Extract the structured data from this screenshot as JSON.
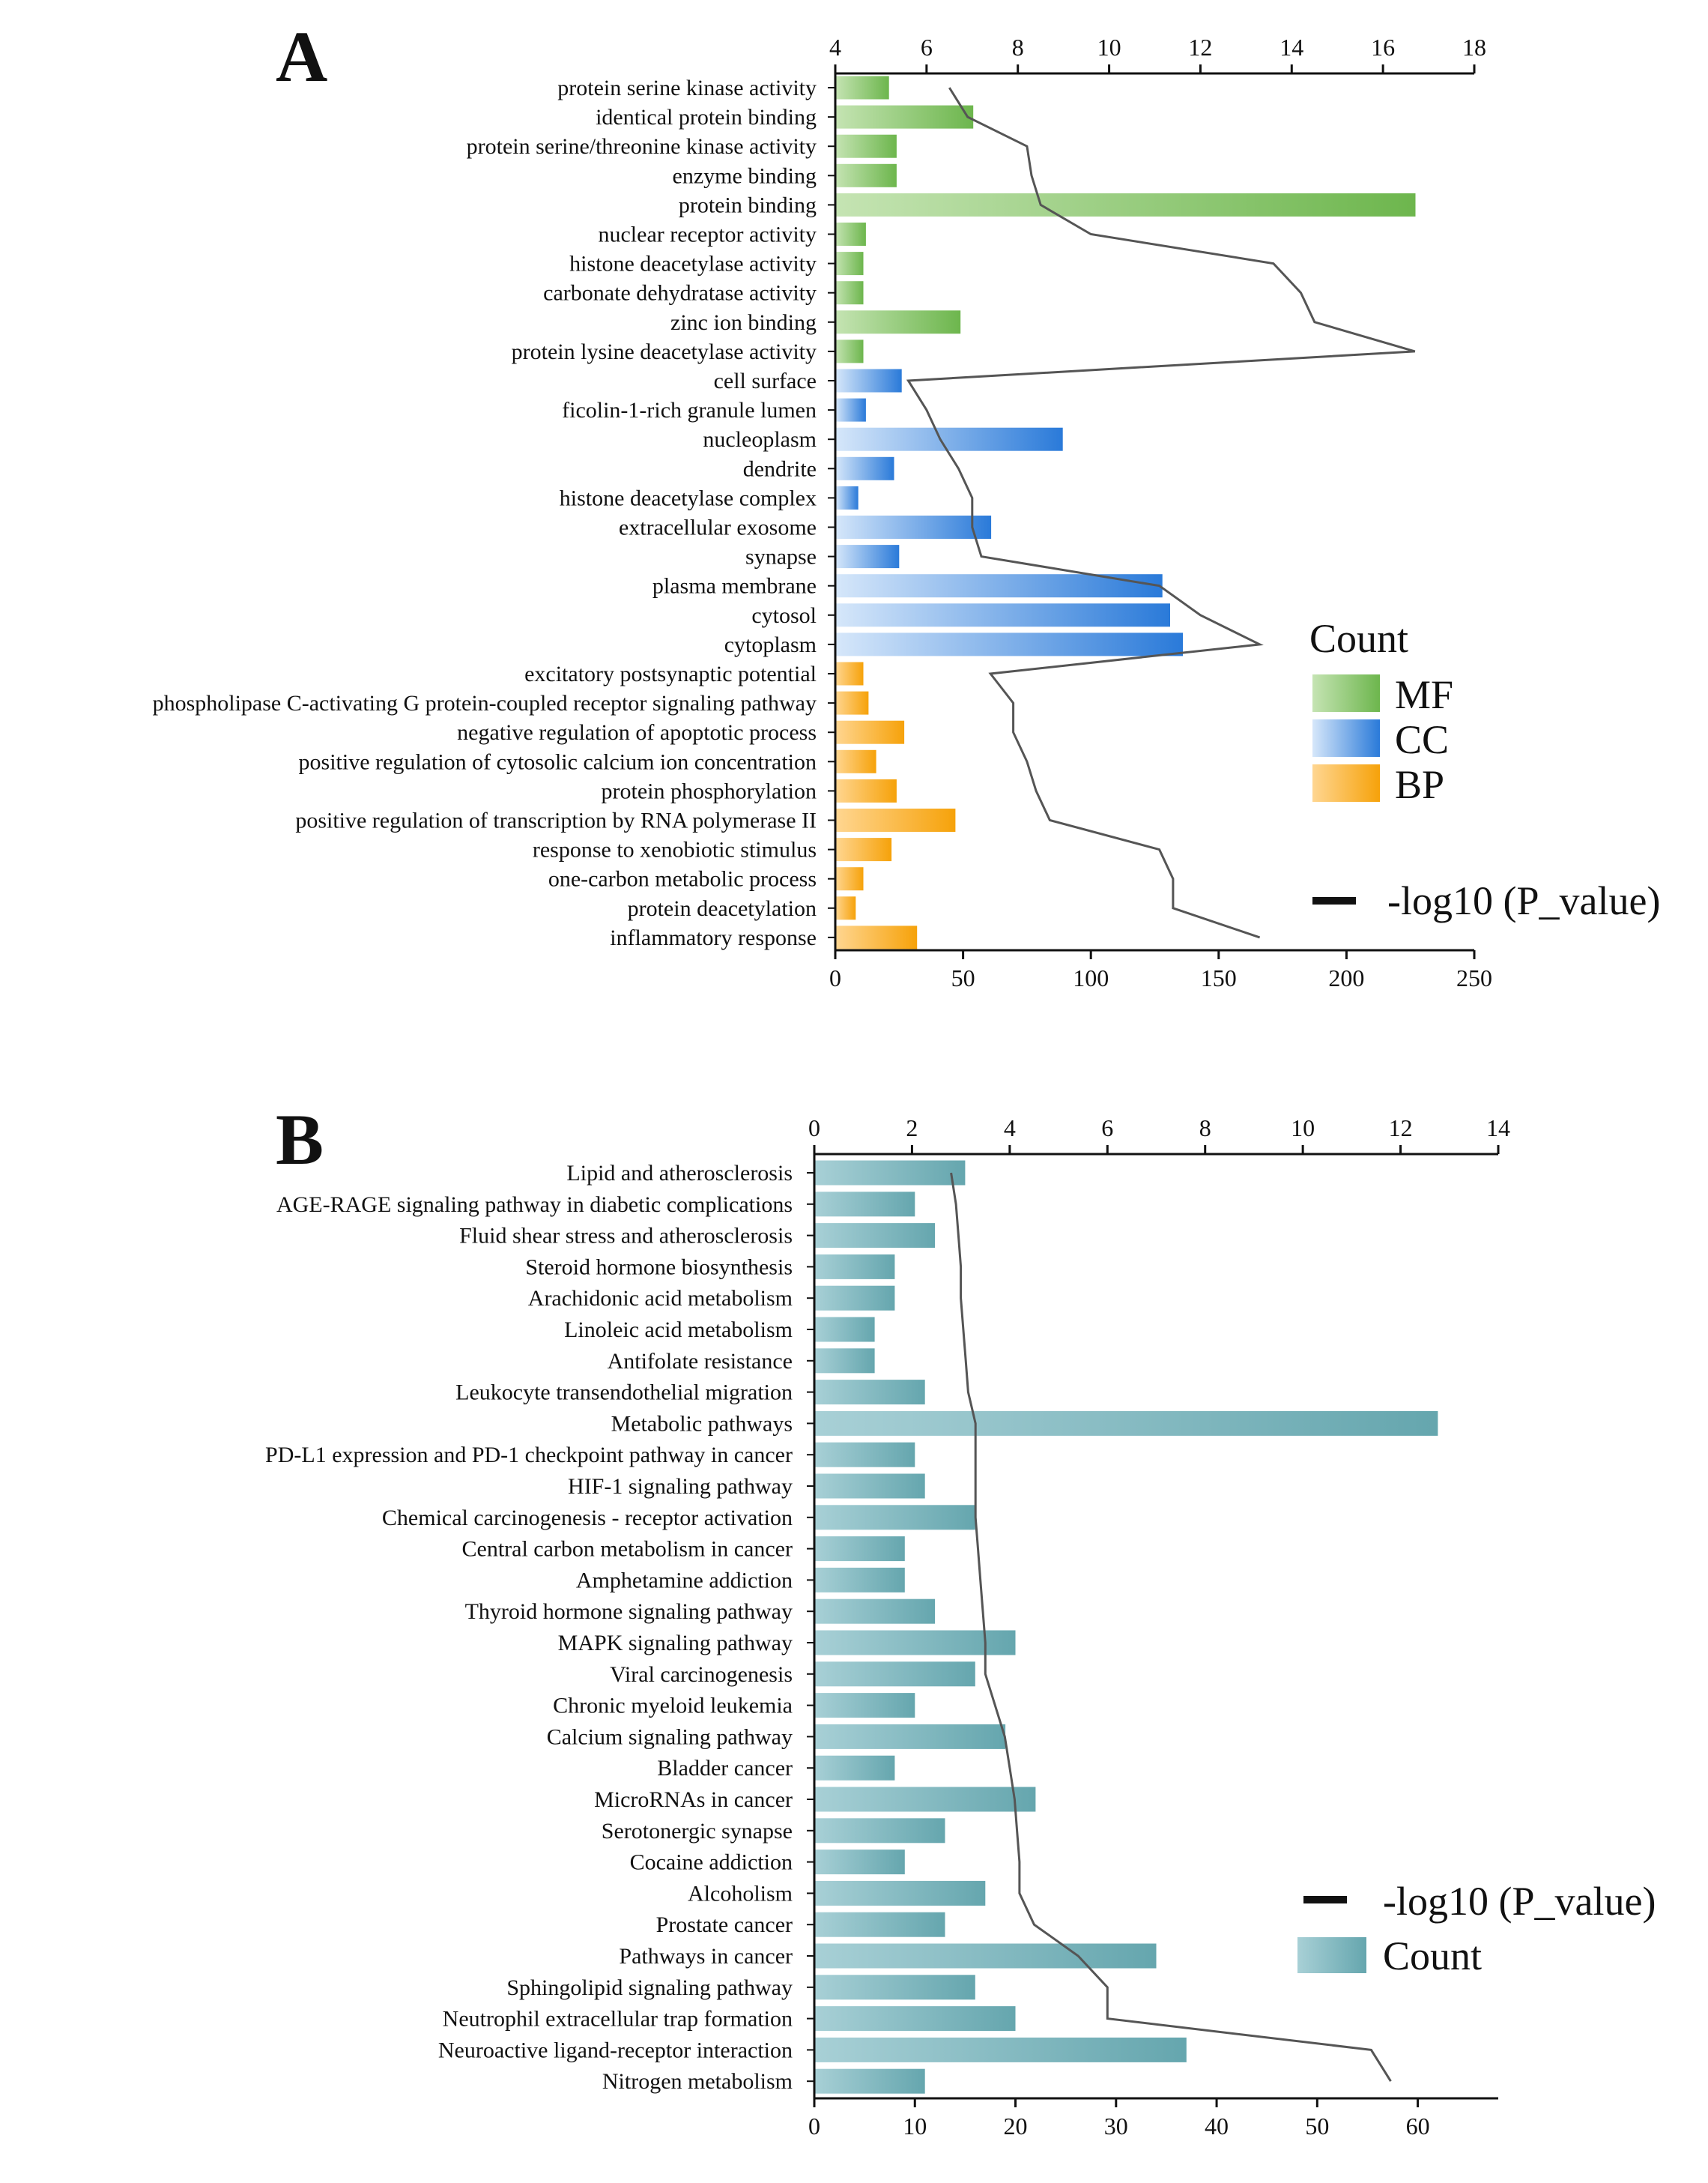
{
  "colors": {
    "MF": [
      "#c5e4b3",
      "#6db64d"
    ],
    "CC": [
      "#d6e7fa",
      "#2a7ad9"
    ],
    "BP": [
      "#ffd691",
      "#f6a20a"
    ],
    "KEGG": [
      "#a8d0d6",
      "#65a6ae"
    ],
    "line": "#555555",
    "axis": "#111111"
  },
  "chart_data": [
    {
      "panel": "A",
      "type": "bar",
      "orientation": "horizontal",
      "categories": [
        "protein serine kinase activity",
        "identical protein binding",
        "protein serine/threonine kinase activity",
        "enzyme binding",
        "protein binding",
        "nuclear receptor activity",
        "histone deacetylase activity",
        "carbonate dehydratase activity",
        "zinc ion binding",
        "protein lysine deacetylase activity",
        "cell surface",
        "ficolin-1-rich granule lumen",
        "nucleoplasm",
        "dendrite",
        "histone deacetylase complex",
        "extracellular exosome",
        "synapse",
        "plasma membrane",
        "cytosol",
        "cytoplasm",
        "excitatory postsynaptic potential",
        "phospholipase C-activating G protein-coupled receptor signaling pathway",
        "negative regulation of apoptotic process",
        "positive regulation of cytosolic calcium ion concentration",
        "protein phosphorylation",
        "positive regulation of transcription by RNA polymerase II",
        "response to xenobiotic stimulus",
        "one-carbon metabolic process",
        "protein deacetylation",
        "inflammatory response"
      ],
      "groups": [
        "MF",
        "MF",
        "MF",
        "MF",
        "MF",
        "MF",
        "MF",
        "MF",
        "MF",
        "MF",
        "CC",
        "CC",
        "CC",
        "CC",
        "CC",
        "CC",
        "CC",
        "CC",
        "CC",
        "CC",
        "BP",
        "BP",
        "BP",
        "BP",
        "BP",
        "BP",
        "BP",
        "BP",
        "BP",
        "BP"
      ],
      "series": [
        {
          "name": "Count",
          "values": [
            21,
            54,
            24,
            24,
            227,
            12,
            11,
            11,
            49,
            11,
            26,
            12,
            89,
            23,
            9,
            61,
            25,
            128,
            131,
            136,
            11,
            13,
            27,
            16,
            24,
            47,
            22,
            11,
            8,
            32
          ]
        },
        {
          "name": "-log10 (P_value)",
          "values": [
            6.5,
            6.9,
            8.2,
            8.3,
            8.5,
            9.6,
            13.6,
            14.2,
            14.5,
            16.7,
            5.6,
            6.0,
            6.3,
            6.7,
            7.0,
            7.0,
            7.2,
            11.1,
            12.0,
            13.3,
            7.4,
            7.9,
            7.9,
            8.2,
            8.4,
            8.7,
            11.1,
            11.4,
            11.4,
            13.3
          ]
        }
      ],
      "xlim": [
        0,
        250
      ],
      "xticks": [
        0,
        50,
        100,
        150,
        200,
        250
      ],
      "x2lim": [
        4,
        18
      ],
      "x2ticks": [
        4,
        6,
        8,
        10,
        12,
        14,
        16,
        18
      ],
      "legend": {
        "title": "Count",
        "entries": [
          "MF",
          "CC",
          "BP"
        ],
        "line_label": "-log10 (P_value)",
        "position": "right"
      }
    },
    {
      "panel": "B",
      "type": "bar",
      "orientation": "horizontal",
      "categories": [
        "Lipid and atherosclerosis",
        "AGE-RAGE signaling pathway in diabetic complications",
        "Fluid shear stress and atherosclerosis",
        "Steroid hormone biosynthesis",
        "Arachidonic acid metabolism",
        "Linoleic acid metabolism",
        "Antifolate resistance",
        "Leukocyte transendothelial migration",
        "Metabolic pathways",
        "PD-L1 expression and PD-1 checkpoint pathway in cancer",
        "HIF-1 signaling pathway",
        "Chemical carcinogenesis - receptor activation",
        "Central carbon metabolism in cancer",
        "Amphetamine addiction",
        "Thyroid hormone signaling pathway",
        "MAPK signaling pathway",
        "Viral carcinogenesis",
        "Chronic myeloid leukemia",
        "Calcium signaling pathway",
        "Bladder cancer",
        "MicroRNAs in cancer",
        "Serotonergic synapse",
        "Cocaine addiction",
        "Alcoholism",
        "Prostate cancer",
        "Pathways in cancer",
        "Sphingolipid signaling pathway",
        "Neutrophil extracellular trap formation",
        "Neuroactive ligand-receptor interaction",
        "Nitrogen metabolism"
      ],
      "series": [
        {
          "name": "Count",
          "values": [
            15,
            10,
            12,
            8,
            8,
            6,
            6,
            11,
            62,
            10,
            11,
            16,
            9,
            9,
            12,
            20,
            16,
            10,
            19,
            8,
            22,
            13,
            9,
            17,
            13,
            34,
            16,
            20,
            37,
            11
          ]
        },
        {
          "name": "-log10 (P_value)",
          "values": [
            2.8,
            2.9,
            2.95,
            3.0,
            3.0,
            3.05,
            3.1,
            3.15,
            3.3,
            3.3,
            3.3,
            3.3,
            3.35,
            3.4,
            3.45,
            3.5,
            3.5,
            3.7,
            3.9,
            4.0,
            4.1,
            4.15,
            4.2,
            4.2,
            4.5,
            5.4,
            6.0,
            6.0,
            11.4,
            11.8
          ]
        }
      ],
      "xlim": [
        0,
        68
      ],
      "xticks": [
        0,
        10,
        20,
        30,
        40,
        50,
        60
      ],
      "x2lim": [
        0,
        14
      ],
      "x2ticks": [
        0,
        2,
        4,
        6,
        8,
        10,
        12,
        14
      ],
      "legend": {
        "entries": [
          "-log10 (P_value)",
          "Count"
        ],
        "position": "right"
      }
    }
  ]
}
